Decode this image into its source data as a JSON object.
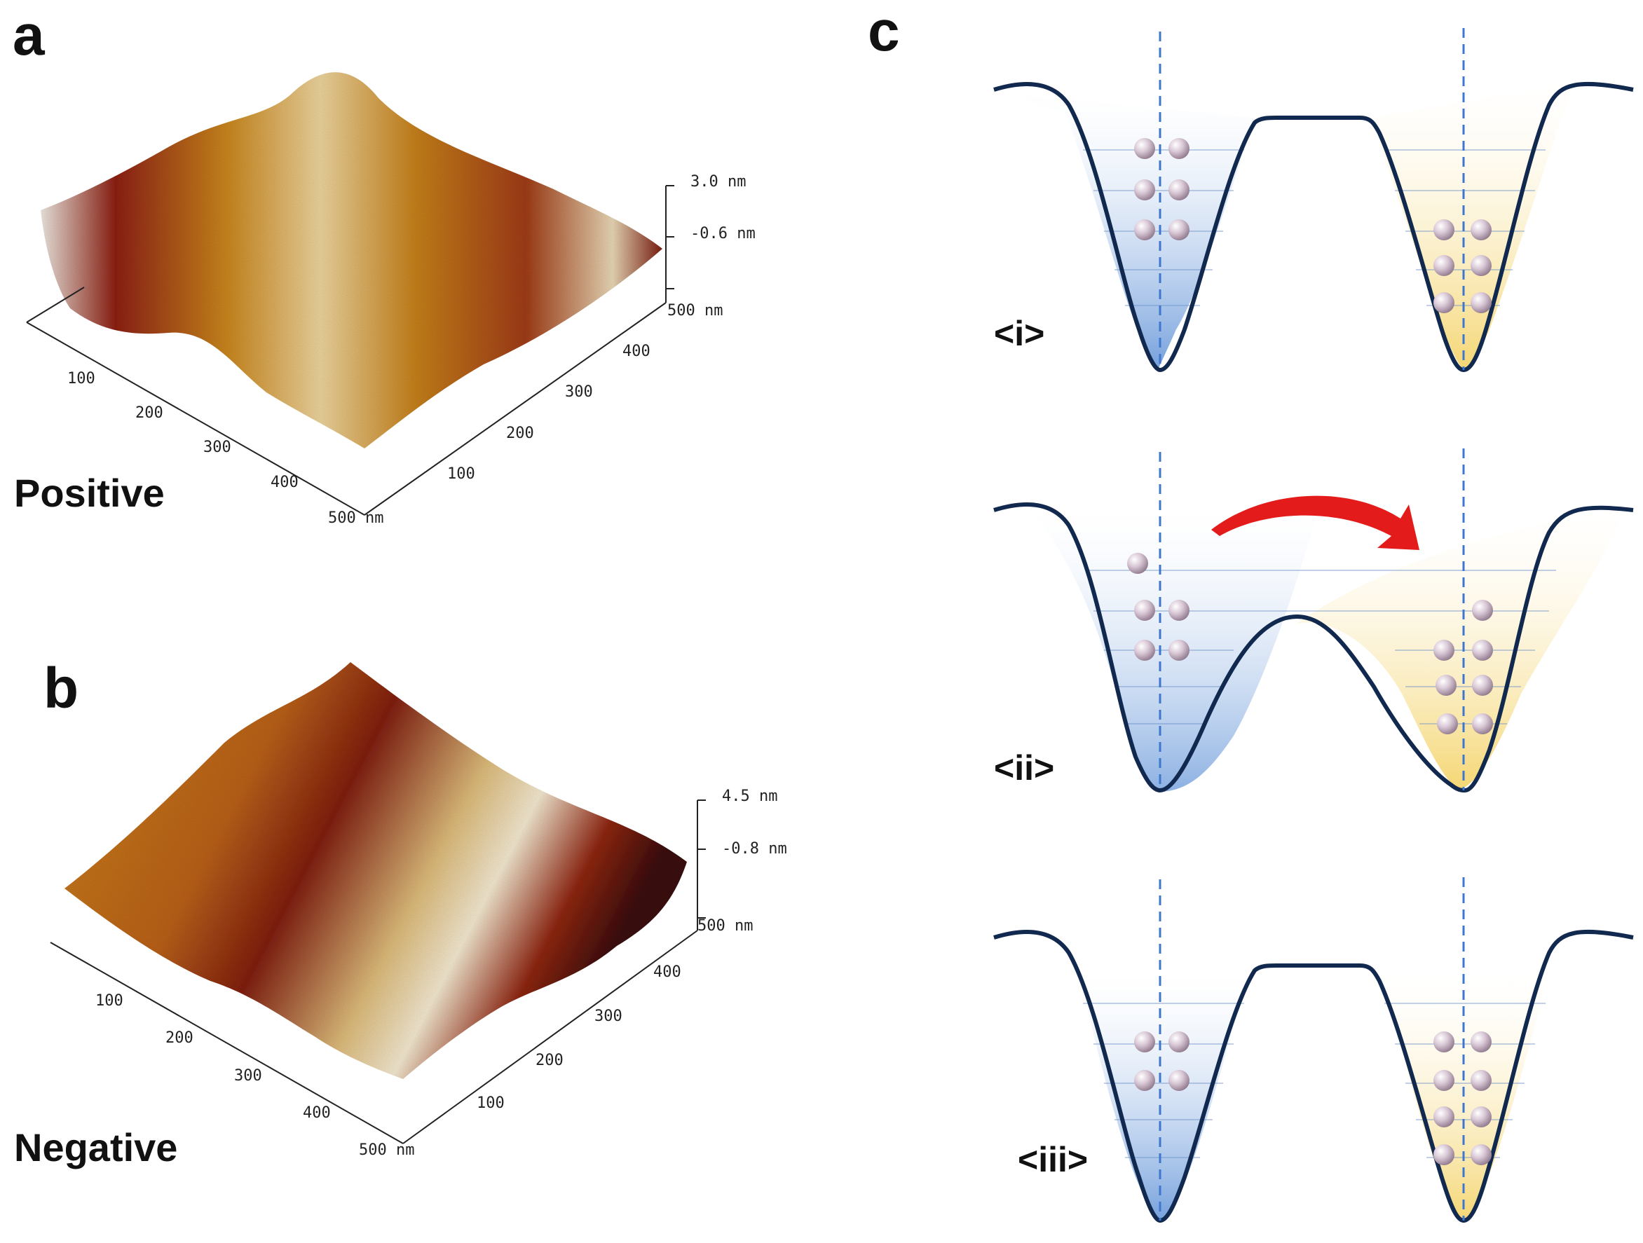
{
  "panels": {
    "a": {
      "letter": "a",
      "label": "Positive",
      "z_scale": [
        "3.0 nm",
        "-0.6 nm"
      ],
      "x_ticks": [
        "100",
        "200",
        "300",
        "400",
        "500 nm"
      ],
      "y_ticks": [
        "100",
        "200",
        "300",
        "400",
        "500 nm"
      ]
    },
    "b": {
      "letter": "b",
      "label": "Negative",
      "z_scale": [
        "4.5 nm",
        "-0.8 nm"
      ],
      "x_ticks": [
        "100",
        "200",
        "300",
        "400",
        "500 nm"
      ],
      "y_ticks": [
        "100",
        "200",
        "300",
        "400",
        "500 nm"
      ]
    },
    "c": {
      "letter": "c",
      "states": [
        "<i>",
        "<ii>",
        "<iii>"
      ]
    }
  },
  "colors": {
    "well_left": "#5b8fd6",
    "well_right": "#f3cf5a",
    "curve": "#12294f",
    "arrow": "#e31b1b",
    "particle": "#d9c8d6"
  }
}
